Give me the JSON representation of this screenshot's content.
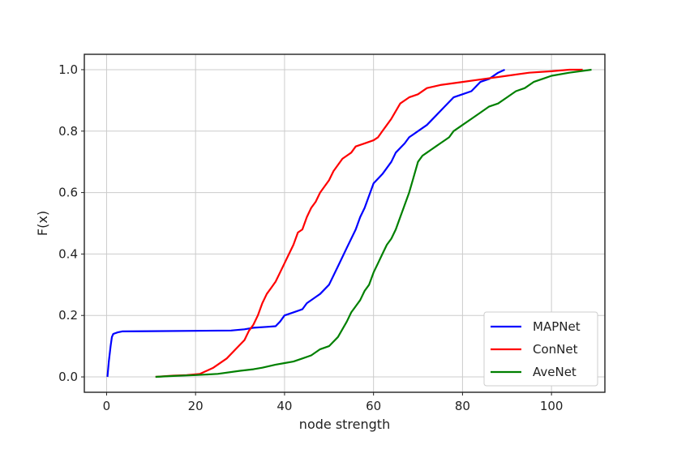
{
  "chart_data": {
    "type": "line",
    "title": "",
    "xlabel": "node strength",
    "ylabel": "F(x)",
    "xlim": [
      -5,
      112
    ],
    "ylim": [
      -0.05,
      1.05
    ],
    "xticks": [
      0,
      20,
      40,
      60,
      80,
      100
    ],
    "yticks": [
      0.0,
      0.2,
      0.4,
      0.6,
      0.8,
      1.0
    ],
    "xtick_labels": [
      "0",
      "20",
      "40",
      "60",
      "80",
      "100"
    ],
    "ytick_labels": [
      "0.0",
      "0.2",
      "0.4",
      "0.6",
      "0.8",
      "1.0"
    ],
    "grid": true,
    "legend_position": "bottom-right",
    "series": [
      {
        "name": "MAPNet",
        "color": "#0000ff",
        "x": [
          0.2,
          0.5,
          0.9,
          1.2,
          1.5,
          2.5,
          3.5,
          10,
          20,
          28,
          31,
          33,
          36,
          38,
          39,
          40,
          42,
          44,
          45,
          47,
          48,
          50,
          52,
          54,
          56,
          57,
          58,
          60,
          62,
          64,
          65,
          67,
          68,
          70,
          72,
          74,
          76,
          78,
          80,
          82,
          84,
          86,
          88,
          89.5
        ],
        "y": [
          0.0,
          0.05,
          0.1,
          0.13,
          0.14,
          0.145,
          0.148,
          0.149,
          0.15,
          0.151,
          0.155,
          0.16,
          0.163,
          0.165,
          0.18,
          0.2,
          0.21,
          0.22,
          0.24,
          0.26,
          0.27,
          0.3,
          0.36,
          0.42,
          0.48,
          0.52,
          0.55,
          0.63,
          0.66,
          0.7,
          0.73,
          0.76,
          0.78,
          0.8,
          0.82,
          0.85,
          0.88,
          0.91,
          0.92,
          0.93,
          0.96,
          0.97,
          0.99,
          1.0
        ]
      },
      {
        "name": "ConNet",
        "color": "#ff0000",
        "x": [
          11,
          15,
          18,
          21,
          24,
          27,
          29,
          31,
          32,
          33,
          34,
          35,
          36,
          37,
          38,
          39,
          40,
          41,
          42,
          43,
          44,
          45,
          46,
          47,
          48,
          49,
          50,
          51,
          52,
          53,
          54,
          55,
          56,
          58,
          60,
          61,
          62,
          63,
          64,
          66,
          68,
          70,
          72,
          75,
          80,
          85,
          90,
          95,
          100,
          104,
          107
        ],
        "y": [
          0.0,
          0.004,
          0.006,
          0.01,
          0.03,
          0.06,
          0.09,
          0.12,
          0.15,
          0.17,
          0.2,
          0.24,
          0.27,
          0.29,
          0.31,
          0.34,
          0.37,
          0.4,
          0.43,
          0.47,
          0.48,
          0.52,
          0.55,
          0.57,
          0.6,
          0.62,
          0.64,
          0.67,
          0.69,
          0.71,
          0.72,
          0.73,
          0.75,
          0.76,
          0.77,
          0.78,
          0.8,
          0.82,
          0.84,
          0.89,
          0.91,
          0.92,
          0.94,
          0.95,
          0.96,
          0.97,
          0.98,
          0.99,
          0.995,
          1.0,
          1.0
        ]
      },
      {
        "name": "AveNet",
        "color": "#008000",
        "x": [
          11,
          15,
          20,
          25,
          30,
          33,
          35,
          38,
          40,
          42,
          44,
          46,
          48,
          50,
          52,
          54,
          55,
          56,
          57,
          58,
          59,
          60,
          61,
          62,
          63,
          64,
          65,
          66,
          67,
          68,
          69,
          70,
          71,
          72,
          73,
          74,
          75,
          76,
          77,
          78,
          80,
          82,
          84,
          86,
          88,
          90,
          92,
          94,
          96,
          98,
          100,
          104,
          109
        ],
        "y": [
          0.0,
          0.003,
          0.006,
          0.01,
          0.02,
          0.025,
          0.03,
          0.04,
          0.045,
          0.05,
          0.06,
          0.07,
          0.09,
          0.1,
          0.13,
          0.18,
          0.21,
          0.23,
          0.25,
          0.28,
          0.3,
          0.34,
          0.37,
          0.4,
          0.43,
          0.45,
          0.48,
          0.52,
          0.56,
          0.6,
          0.65,
          0.7,
          0.72,
          0.73,
          0.74,
          0.75,
          0.76,
          0.77,
          0.78,
          0.8,
          0.82,
          0.84,
          0.86,
          0.88,
          0.89,
          0.91,
          0.93,
          0.94,
          0.96,
          0.97,
          0.98,
          0.99,
          1.0
        ]
      }
    ]
  }
}
